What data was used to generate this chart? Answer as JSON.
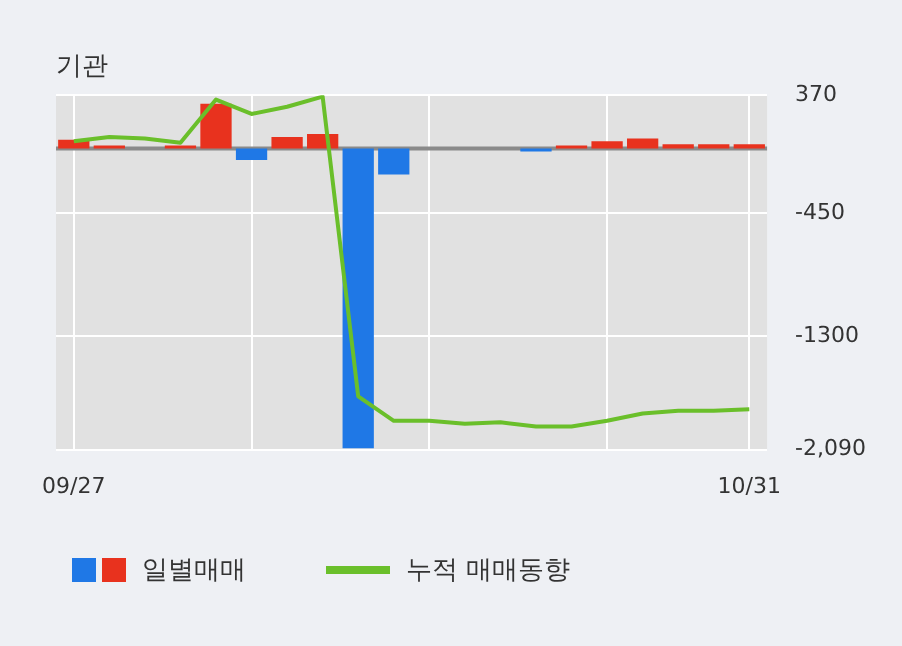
{
  "chart_data": {
    "type": "bar",
    "title": "기관",
    "categories": [
      "09/27",
      null,
      null,
      null,
      null,
      null,
      null,
      null,
      null,
      null,
      null,
      null,
      null,
      null,
      null,
      null,
      null,
      null,
      null,
      "10/31"
    ],
    "series": [
      {
        "name": "일별매매",
        "values": [
          60,
          20,
          0,
          20,
          310,
          -80,
          80,
          100,
          -2080,
          -180,
          0,
          0,
          0,
          -20,
          20,
          50,
          70,
          30,
          30,
          30
        ],
        "colors": [
          "#e8321e",
          "#e8321e",
          "#e8321e",
          "#e8321e",
          "#e8321e",
          "#1f78e6",
          "#e8321e",
          "#e8321e",
          "#1f78e6",
          "#1f78e6",
          "#e8321e",
          "#e8321e",
          "#e8321e",
          "#1f78e6",
          "#e8321e",
          "#e8321e",
          "#e8321e",
          "#e8321e",
          "#e8321e",
          "#e8321e"
        ]
      },
      {
        "type": "line",
        "name": "누적 매매동향",
        "color": "#6abf2a",
        "values": [
          50,
          80,
          70,
          40,
          340,
          240,
          290,
          360,
          -1720,
          -1890,
          -1890,
          -1910,
          -1900,
          -1930,
          -1930,
          -1890,
          -1840,
          -1820,
          -1820,
          -1810
        ]
      }
    ],
    "ylim": [
      -2090,
      370
    ],
    "yticks": [
      {
        "value": 370,
        "label": "370"
      },
      {
        "value": -450,
        "label": "-450"
      },
      {
        "value": -1300,
        "label": "-1300"
      },
      {
        "value": -2090,
        "label": "-2,090"
      }
    ],
    "grid": true,
    "legend": "bottom",
    "marker": "none",
    "line_style": "solid"
  }
}
